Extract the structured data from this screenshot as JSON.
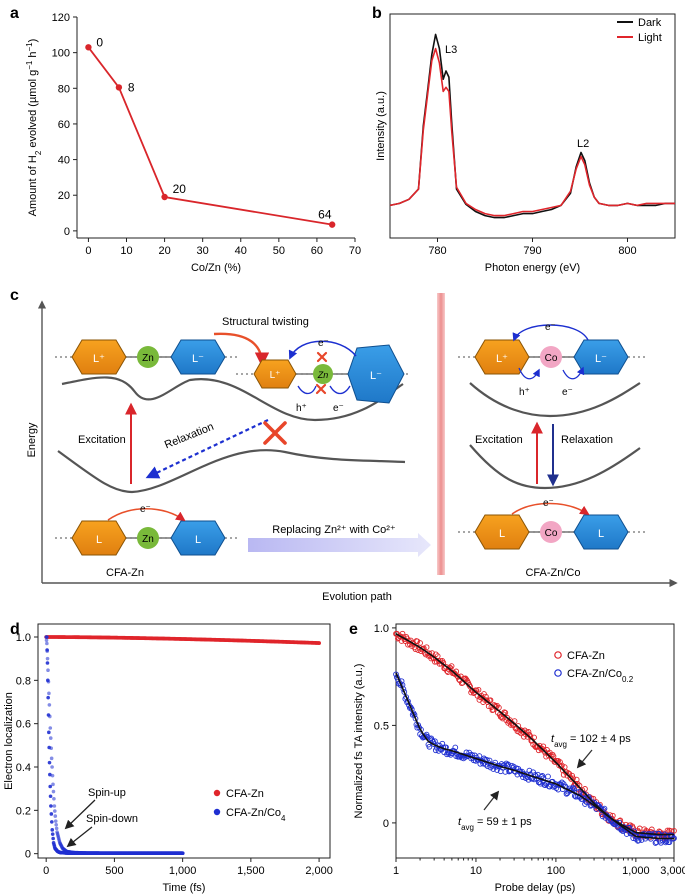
{
  "panel_labels": {
    "a": "a",
    "b": "b",
    "c": "c",
    "d": "d",
    "e": "e"
  },
  "chart_data": [
    {
      "panel": "a",
      "type": "line",
      "x": [
        0,
        8,
        20,
        64
      ],
      "y": [
        103,
        80.5,
        19,
        3.5
      ],
      "point_labels": [
        "0",
        "8",
        "20",
        "64"
      ],
      "xlabel": "Co/Zn (%)",
      "ylabel": "Amount of H2 evolved (µmol g−1 h−1)",
      "xlim": [
        -3,
        70
      ],
      "ylim": [
        -4,
        120
      ],
      "xticks": [
        "0",
        "10",
        "20",
        "30",
        "40",
        "50",
        "60",
        "70"
      ],
      "yticks": [
        "0",
        "20",
        "40",
        "60",
        "80",
        "100",
        "120"
      ],
      "color": "#d9262b"
    },
    {
      "panel": "b",
      "type": "line",
      "xlabel": "Photon energy (eV)",
      "ylabel": "Intensity (a.u.)",
      "xlim": [
        775,
        805
      ],
      "xticks": [
        "780",
        "790",
        "800"
      ],
      "legend": [
        "Dark",
        "Light"
      ],
      "annotations": [
        "L3",
        "L2"
      ],
      "series": [
        {
          "name": "Dark",
          "color": "#111111",
          "x": [
            775,
            776,
            777,
            778,
            778.5,
            779,
            779.4,
            779.8,
            780.2,
            780.6,
            780.9,
            781.2,
            781.5,
            782,
            783,
            784,
            785,
            786,
            787,
            788,
            789,
            790,
            791,
            792,
            793,
            794,
            794.6,
            795.1,
            795.5,
            796,
            796.5,
            797,
            798,
            799,
            800,
            801,
            802,
            803,
            804,
            805
          ],
          "y": [
            0.16,
            0.17,
            0.19,
            0.24,
            0.55,
            0.74,
            0.9,
            1.0,
            0.93,
            0.78,
            0.82,
            0.79,
            0.56,
            0.24,
            0.165,
            0.13,
            0.11,
            0.1,
            0.1,
            0.11,
            0.12,
            0.12,
            0.13,
            0.14,
            0.16,
            0.22,
            0.35,
            0.42,
            0.38,
            0.27,
            0.2,
            0.17,
            0.16,
            0.16,
            0.17,
            0.16,
            0.16,
            0.16,
            0.17,
            0.17
          ]
        },
        {
          "name": "Light",
          "color": "#e0252b",
          "x": [
            775,
            776,
            777,
            778,
            778.5,
            779,
            779.4,
            779.8,
            780.2,
            780.6,
            780.9,
            781.2,
            781.5,
            782,
            783,
            784,
            785,
            786,
            787,
            788,
            789,
            790,
            791,
            792,
            793,
            794,
            794.6,
            795.1,
            795.5,
            796,
            796.5,
            797,
            798,
            799,
            800,
            801,
            802,
            803,
            804,
            805
          ],
          "y": [
            0.16,
            0.17,
            0.19,
            0.24,
            0.53,
            0.72,
            0.87,
            0.93,
            0.86,
            0.72,
            0.74,
            0.72,
            0.52,
            0.25,
            0.17,
            0.14,
            0.12,
            0.11,
            0.11,
            0.12,
            0.13,
            0.13,
            0.14,
            0.15,
            0.16,
            0.23,
            0.34,
            0.4,
            0.36,
            0.26,
            0.2,
            0.17,
            0.16,
            0.16,
            0.17,
            0.16,
            0.17,
            0.17,
            0.17,
            0.17
          ]
        }
      ]
    },
    {
      "panel": "d",
      "type": "scatter",
      "xlabel": "Time (fs)",
      "ylabel": "Electron localization",
      "xlim": [
        -60,
        2080
      ],
      "ylim": [
        -0.02,
        1.06
      ],
      "xticks": [
        "0",
        "500",
        "1,000",
        "1,500",
        "2,000"
      ],
      "yticks": [
        "0",
        "0.2",
        "0.4",
        "0.6",
        "0.8",
        "1.0"
      ],
      "legend": [
        "CFA-Zn",
        "CFA-Zn/Co4"
      ],
      "annotations": [
        "Spin-up",
        "Spin-down"
      ],
      "series": [
        {
          "name": "CFA-Zn",
          "color": "#e0252b",
          "x": [
            0,
            250,
            500,
            750,
            1000,
            1250,
            1500,
            1750,
            2000
          ],
          "y": [
            1.0,
            1.0,
            0.997,
            0.995,
            0.99,
            0.987,
            0.983,
            0.978,
            0.972
          ]
        },
        {
          "name": "CFA-Zn/Co4 spin-up",
          "color": "#1f2fd1",
          "x": [
            0,
            5,
            10,
            20,
            30,
            40,
            50,
            60,
            70,
            80,
            100,
            120,
            150,
            200,
            300,
            500,
            700,
            1000
          ],
          "y": [
            1.0,
            0.97,
            0.9,
            0.74,
            0.58,
            0.44,
            0.32,
            0.22,
            0.15,
            0.1,
            0.05,
            0.025,
            0.01,
            0.005,
            0.003,
            0.002,
            0.002,
            0.002
          ]
        },
        {
          "name": "CFA-Zn/Co4 spin-down",
          "color": "#1f2fd1",
          "x": [
            0,
            5,
            10,
            15,
            20,
            25,
            30,
            40,
            50,
            60,
            80,
            100,
            150,
            200,
            500,
            1000
          ],
          "y": [
            1.0,
            0.88,
            0.72,
            0.56,
            0.42,
            0.31,
            0.22,
            0.11,
            0.05,
            0.025,
            0.01,
            0.005,
            0.003,
            0.002,
            0.002,
            0.002
          ]
        }
      ]
    },
    {
      "panel": "e",
      "type": "scatter",
      "xlabel": "Probe delay (ps)",
      "ylabel": "Normalized fs TA intensity (a.u.)",
      "xscale": "log",
      "xlim": [
        1,
        3000
      ],
      "ylim": [
        -0.18,
        1.02
      ],
      "xticks": [
        "1",
        "10",
        "100",
        "1,000",
        "3,000"
      ],
      "yticks": [
        "0",
        "0.5",
        "1.0"
      ],
      "legend": [
        "CFA-Zn",
        "CFA-Zn/Co0.2"
      ],
      "annotations": [
        "tavg = 102 ± 4 ps",
        "tavg = 59 ± 1 ps"
      ],
      "series": [
        {
          "name": "CFA-Zn",
          "color": "#e0252b",
          "x": [
            1,
            2,
            3,
            5,
            10,
            20,
            30,
            50,
            100,
            200,
            300,
            500,
            1000,
            2000,
            3000
          ],
          "y": [
            0.97,
            0.9,
            0.85,
            0.78,
            0.67,
            0.57,
            0.51,
            0.43,
            0.31,
            0.18,
            0.1,
            0.02,
            -0.05,
            -0.06,
            -0.06
          ]
        },
        {
          "name": "CFA-Zn/Co0.2",
          "color": "#1f2fd1",
          "x": [
            1,
            1.5,
            2,
            2.5,
            3,
            4,
            5,
            10,
            20,
            30,
            50,
            100,
            200,
            300,
            500,
            1000,
            2000,
            3000
          ],
          "y": [
            0.77,
            0.6,
            0.48,
            0.42,
            0.4,
            0.38,
            0.37,
            0.33,
            0.29,
            0.27,
            0.24,
            0.2,
            0.14,
            0.09,
            0.02,
            -0.07,
            -0.08,
            -0.08
          ]
        }
      ]
    }
  ],
  "diagram": {
    "axis_label_y": "Energy",
    "axis_label_x": "Evolution path",
    "structural_twisting": "Structural twisting",
    "excitation": "Excitation",
    "relaxation": "Relaxation",
    "replacing": "Replacing Zn²⁺ with Co²⁺",
    "cfa_zn": "CFA-Zn",
    "cfa_zn_co": "CFA-Zn/Co",
    "zn": "Zn",
    "co": "Co",
    "l": "L",
    "l_plus": "L⁺",
    "l_minus": "L⁻",
    "e_minus": "e⁻",
    "h_plus": "h⁺"
  }
}
